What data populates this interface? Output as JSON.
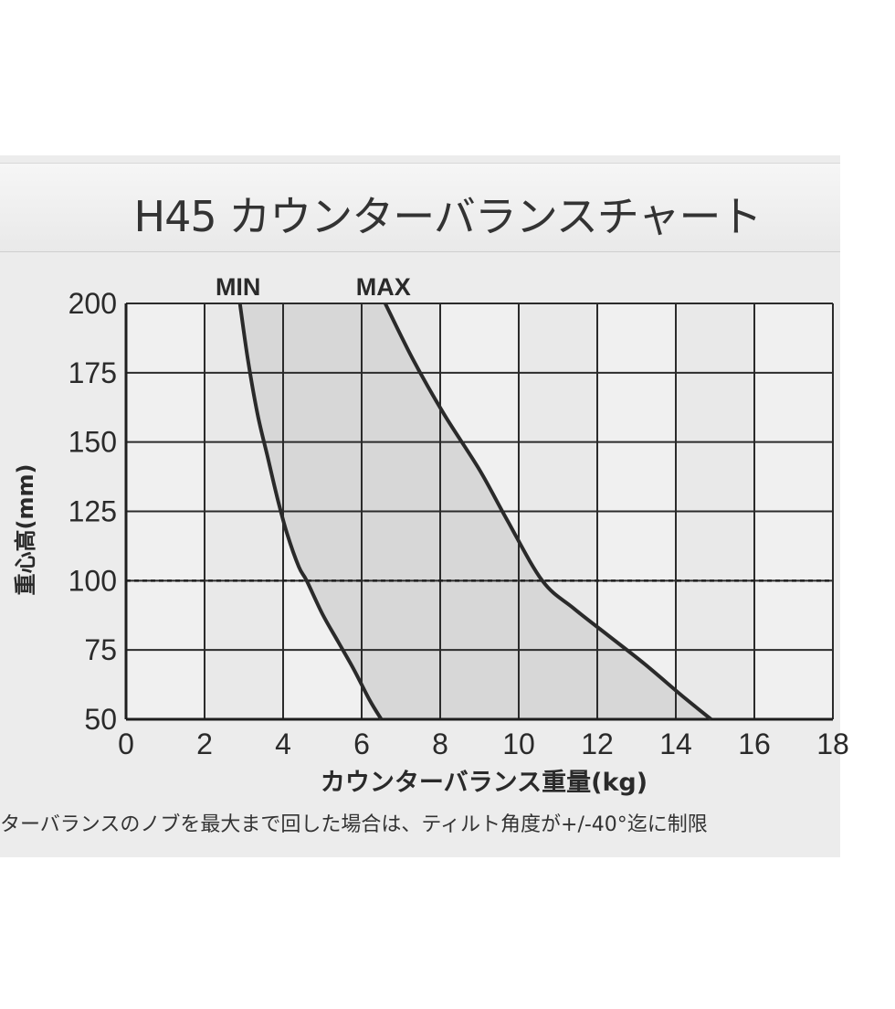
{
  "chart_data": {
    "type": "area",
    "title": "H45 カウンターバランスチャート",
    "xlabel": "カウンターバランス重量(kg)",
    "ylabel": "重心高(mm)",
    "xlim": [
      0,
      18
    ],
    "ylim": [
      50,
      200
    ],
    "x_ticks": [
      "0",
      "2",
      "4",
      "6",
      "8",
      "10",
      "12",
      "14",
      "16",
      "18"
    ],
    "y_ticks": [
      "50",
      "75",
      "100",
      "125",
      "150",
      "175",
      "200"
    ],
    "grid": true,
    "reference_line": {
      "y": 100,
      "style": "dashed"
    },
    "series": [
      {
        "name": "MIN",
        "points": [
          [
            2.9,
            200
          ],
          [
            3.1,
            180
          ],
          [
            3.35,
            160
          ],
          [
            3.6,
            145
          ],
          [
            3.85,
            130
          ],
          [
            4.1,
            117
          ],
          [
            4.4,
            105
          ],
          [
            4.6,
            100
          ],
          [
            5.0,
            88
          ],
          [
            5.4,
            78
          ],
          [
            5.8,
            68
          ],
          [
            6.2,
            57
          ],
          [
            6.5,
            50
          ]
        ]
      },
      {
        "name": "MAX",
        "points": [
          [
            6.6,
            200
          ],
          [
            7.3,
            180
          ],
          [
            8.1,
            160
          ],
          [
            9.0,
            140
          ],
          [
            9.7,
            122
          ],
          [
            10.6,
            100
          ],
          [
            11.4,
            90
          ],
          [
            12.3,
            80
          ],
          [
            13.2,
            70
          ],
          [
            14.2,
            58
          ],
          [
            14.9,
            50
          ]
        ]
      }
    ],
    "shaded_region": "between MIN and MAX"
  },
  "note": "ターバランスのノブを最大まで回した場合は、ティルト角度が+/-40°迄に制限"
}
